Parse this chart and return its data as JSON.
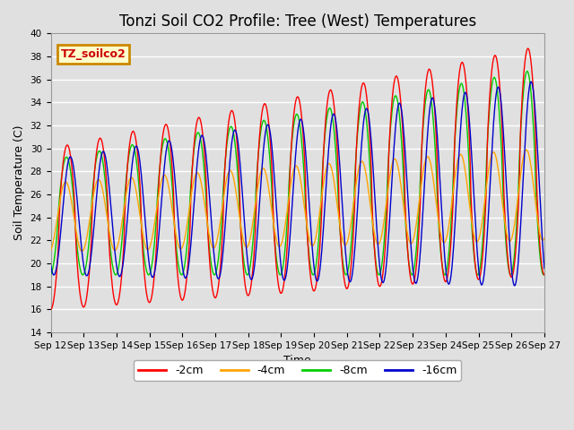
{
  "title": "Tonzi Soil CO2 Profile: Tree (West) Temperatures",
  "xlabel": "Time",
  "ylabel": "Soil Temperature (C)",
  "ylim": [
    14,
    40
  ],
  "xlim_days": [
    12,
    27
  ],
  "xtick_labels": [
    "Sep 12",
    "Sep 13",
    "Sep 14",
    "Sep 15",
    "Sep 16",
    "Sep 17",
    "Sep 18",
    "Sep 19",
    "Sep 20",
    "Sep 21",
    "Sep 22",
    "Sep 23",
    "Sep 24",
    "Sep 25",
    "Sep 26",
    "Sep 27"
  ],
  "legend_title": "TZ_soilco2",
  "series": [
    {
      "label": "-2cm",
      "color": "#ff0000"
    },
    {
      "label": "-4cm",
      "color": "#ffa500"
    },
    {
      "label": "-8cm",
      "color": "#00cc00"
    },
    {
      "label": "-16cm",
      "color": "#0000cc"
    }
  ],
  "bg_color": "#e0e0e0",
  "grid_color": "#ffffff",
  "title_fontsize": 12,
  "axis_label_fontsize": 9,
  "tick_fontsize": 7.5,
  "legend_box_color": "#ffffcc",
  "legend_box_edge": "#cc8800"
}
